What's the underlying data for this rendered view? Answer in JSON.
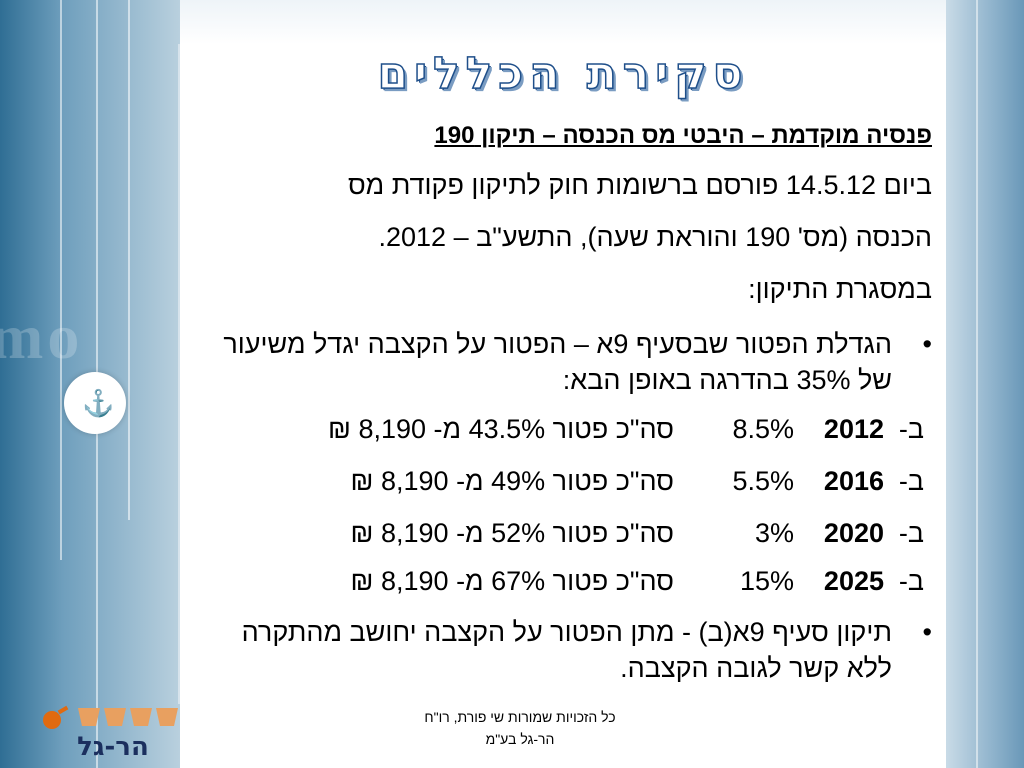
{
  "slide": {
    "title": "סקירת הכללים",
    "subtitle": "פנסיה מוקדמת – היבטי מס הכנסה – תיקון 190",
    "paragraph": [
      "ביום 14.5.12 פורסם ברשומות חוק לתיקון פקודת מס",
      "הכנסה (מס' 190 והוראת שעה), התשע\"ב – 2012.",
      "במסגרת התיקון:"
    ],
    "bullet1": "הגדלת הפטור שבסעיף 9א – הפטור על הקצבה יגדל משיעור של 35% בהדרגה באופן הבא:",
    "schedule": [
      {
        "prefix": "ב-",
        "year": "2012",
        "percent": "8.5%",
        "text": "סה\"כ פטור 43.5% מ- 8,190 ₪"
      },
      {
        "prefix": "ב-",
        "year": "2016",
        "percent": "5.5%",
        "text": "סה\"כ פטור 49% מ- 8,190 ₪"
      },
      {
        "prefix": "ב-",
        "year": "2020",
        "percent": "3%",
        "text": "סה\"כ פטור 52% מ- 8,190 ₪"
      },
      {
        "prefix": "ב-",
        "year": "2025",
        "percent": "15%",
        "text": "סה\"כ פטור 67% מ- 8,190 ₪"
      }
    ],
    "bullet2": "תיקון סעיף 9א(ב) - מתן הפטור על הקצבה יחושב מהתקרה ללא קשר לגובה הקצבה.",
    "bullet_symbol": "•"
  },
  "footer": {
    "line1": "כל הזכויות שמורות  שי פורת, רו\"ח",
    "line2": "הר-גל בע\"מ"
  },
  "logo": {
    "name": "הר-גל"
  },
  "colors": {
    "title_outline": "#1f4f8a",
    "panel_blue": "#2f6e94",
    "logo_orange": "#e06a10"
  }
}
